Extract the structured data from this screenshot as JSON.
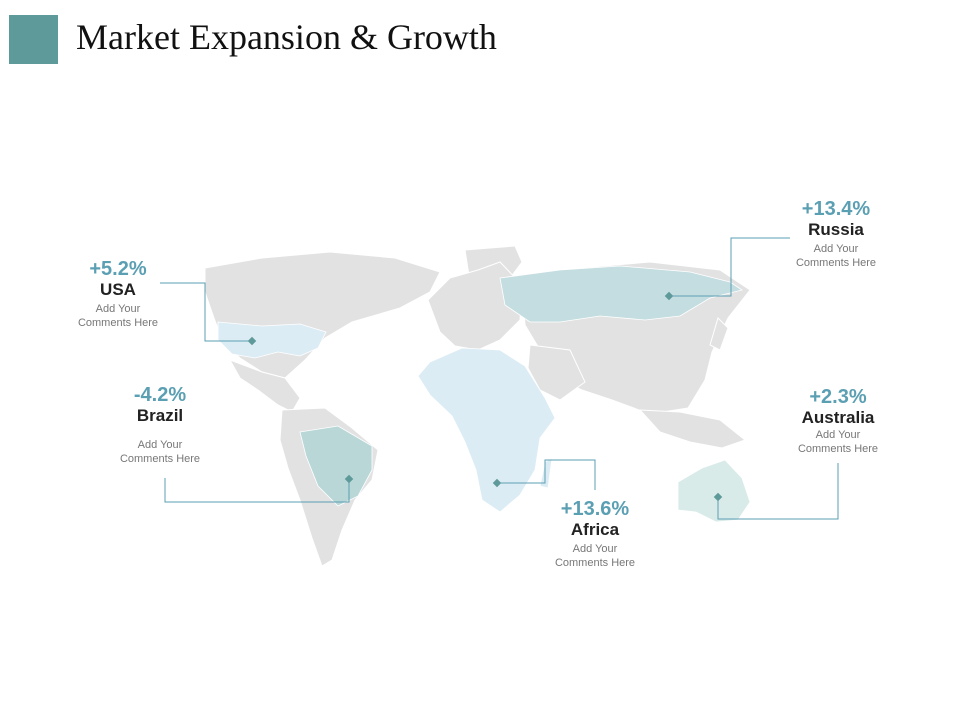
{
  "slide": {
    "title": "Market Expansion & Growth",
    "accent_color": "#5e9a9a"
  },
  "map": {
    "land_color": "#e2e2e2",
    "leader_color": "#5b9fb3",
    "regions": [
      {
        "id": "usa",
        "name": "USA",
        "growth": "+5.2%",
        "comment": "Add Your Comments Here",
        "growth_value": 5.2,
        "fill": "#dcecf5"
      },
      {
        "id": "brazil",
        "name": "Brazil",
        "growth": "-4.2%",
        "comment": "Add Your Comments Here",
        "growth_value": -4.2,
        "fill": "#b9d7d7"
      },
      {
        "id": "africa",
        "name": "Africa",
        "growth": "+13.6%",
        "comment": "Add Your Comments Here",
        "growth_value": 13.6,
        "fill": "#dcecf5"
      },
      {
        "id": "russia",
        "name": "Russia",
        "growth": "+13.4%",
        "comment": "Add Your Comments Here",
        "growth_value": 13.4,
        "fill": "#c4dde0"
      },
      {
        "id": "australia",
        "name": "Australia",
        "growth": "+2.3%",
        "comment": "Add Your Comments Here",
        "growth_value": 2.3,
        "fill": "#d8ebe9"
      }
    ]
  }
}
